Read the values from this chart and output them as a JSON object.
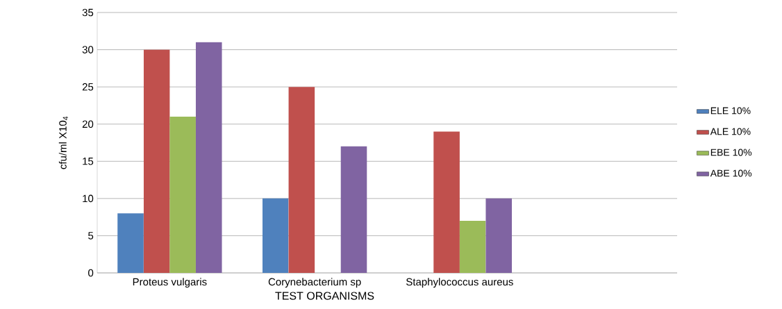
{
  "chart_data": {
    "type": "bar",
    "xlabel": "TEST ORGANISMS",
    "ylabel": "cfu/ml X10$_{4}$",
    "categories": [
      "Proteus vulgaris",
      "Corynebacterium sp",
      "Staphylococcus aureus",
      null
    ],
    "series": [
      {
        "name": "ELE 10%",
        "color": "#4f81bd",
        "values": [
          8,
          10,
          null,
          null
        ]
      },
      {
        "name": "ALE 10%",
        "color": "#c0504d",
        "values": [
          30,
          25,
          19,
          null
        ]
      },
      {
        "name": "EBE 10%",
        "color": "#9bbb59",
        "values": [
          21,
          null,
          7,
          null
        ]
      },
      {
        "name": "ABE 10%",
        "color": "#8064a2",
        "values": [
          31,
          17,
          10,
          null
        ]
      }
    ],
    "ylim": [
      0,
      35
    ],
    "yticks": [
      0,
      5,
      10,
      15,
      20,
      25,
      30,
      35
    ],
    "grid": "y",
    "legend": "right"
  }
}
